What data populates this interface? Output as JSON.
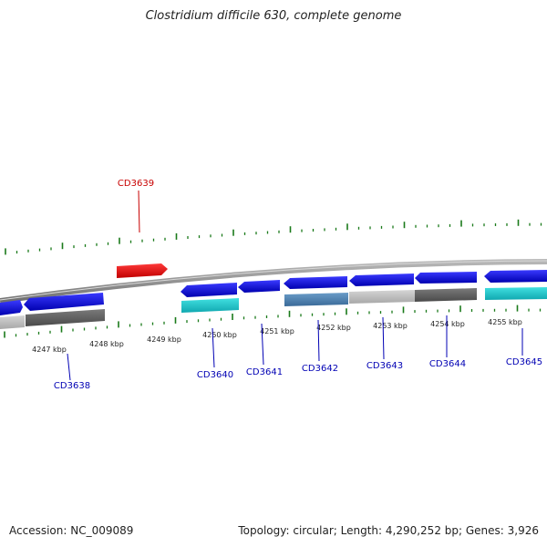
{
  "title": "Clostridium difficile 630, complete genome",
  "footer": {
    "accession": "Accession: NC_009089",
    "stats": "Topology: circular; Length: 4,290,252 bp; Genes: 3,926"
  },
  "ruler": {
    "unit": "kbp",
    "labels": [
      "4247 kbp",
      "4248 kbp",
      "4249 kbp",
      "4250 kbp",
      "4251 kbp",
      "4252 kbp",
      "4253 kbp",
      "4254 kbp",
      "4255 kbp"
    ]
  },
  "genes": [
    {
      "name": "CD3638",
      "strand": "forward",
      "color": "#0000e6"
    },
    {
      "name": "CD3639",
      "strand": "forward",
      "color": "#e60000"
    },
    {
      "name": "CD3640",
      "strand": "reverse",
      "color": "#0000e6"
    },
    {
      "name": "CD3641",
      "strand": "reverse",
      "color": "#0000e6"
    },
    {
      "name": "CD3642",
      "strand": "reverse",
      "color": "#0000e6"
    },
    {
      "name": "CD3643",
      "strand": "reverse",
      "color": "#0000e6"
    },
    {
      "name": "CD3644",
      "strand": "forward",
      "color": "#0000e6"
    },
    {
      "name": "CD3645",
      "strand": "reverse",
      "color": "#0000e6"
    }
  ],
  "colors": {
    "label_blue": "#0000b4",
    "label_red": "#c80000",
    "tick_green": "#1a7a1a",
    "backbone": "#8a8a8a"
  }
}
